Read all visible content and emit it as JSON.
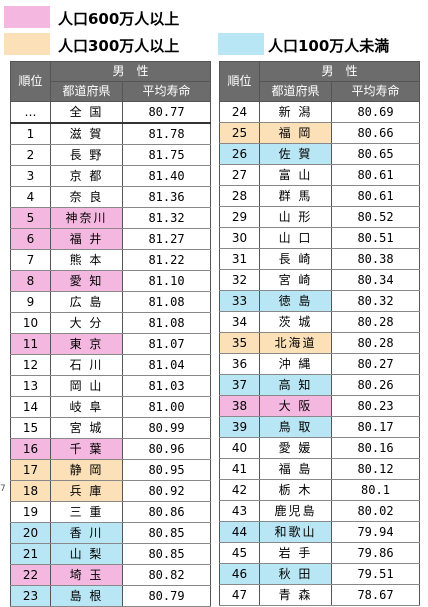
{
  "colors": {
    "pop600": "#f4b8e0",
    "pop300": "#fce0b8",
    "pop100": "#b8e6f4",
    "header_bg": "#6c6c6c"
  },
  "legend": [
    {
      "label": "人口600万人以上",
      "color": "#f4b8e0"
    },
    {
      "label": "人口300万人以上",
      "color": "#fce0b8"
    },
    {
      "label": "人口100万人未満",
      "color": "#b8e6f4"
    }
  ],
  "table": {
    "col_rank": "順位",
    "group_header": "男　性",
    "col_pref": "都道府県",
    "col_life": "平均寿命"
  },
  "left_rows": [
    {
      "rank": "…",
      "pref": "全 国",
      "value": "80.77",
      "cat": ""
    },
    {
      "rank": "1",
      "pref": "滋 賀",
      "value": "81.78",
      "cat": ""
    },
    {
      "rank": "2",
      "pref": "長 野",
      "value": "81.75",
      "cat": ""
    },
    {
      "rank": "3",
      "pref": "京 都",
      "value": "81.40",
      "cat": ""
    },
    {
      "rank": "4",
      "pref": "奈 良",
      "value": "81.36",
      "cat": ""
    },
    {
      "rank": "5",
      "pref": "神奈川",
      "value": "81.32",
      "cat": "pop600"
    },
    {
      "rank": "6",
      "pref": "福 井",
      "value": "81.27",
      "cat": "pop600"
    },
    {
      "rank": "7",
      "pref": "熊 本",
      "value": "81.22",
      "cat": ""
    },
    {
      "rank": "8",
      "pref": "愛 知",
      "value": "81.10",
      "cat": "pop600"
    },
    {
      "rank": "9",
      "pref": "広 島",
      "value": "81.08",
      "cat": ""
    },
    {
      "rank": "10",
      "pref": "大 分",
      "value": "81.08",
      "cat": ""
    },
    {
      "rank": "11",
      "pref": "東 京",
      "value": "81.07",
      "cat": "pop600"
    },
    {
      "rank": "12",
      "pref": "石 川",
      "value": "81.04",
      "cat": ""
    },
    {
      "rank": "13",
      "pref": "岡 山",
      "value": "81.03",
      "cat": ""
    },
    {
      "rank": "14",
      "pref": "岐 阜",
      "value": "81.00",
      "cat": ""
    },
    {
      "rank": "15",
      "pref": "宮 城",
      "value": "80.99",
      "cat": ""
    },
    {
      "rank": "16",
      "pref": "千 葉",
      "value": "80.96",
      "cat": "pop600"
    },
    {
      "rank": "17",
      "pref": "静 岡",
      "value": "80.95",
      "cat": "pop300"
    },
    {
      "rank": "18",
      "pref": "兵 庫",
      "value": "80.92",
      "cat": "pop300"
    },
    {
      "rank": "19",
      "pref": "三 重",
      "value": "80.86",
      "cat": ""
    },
    {
      "rank": "20",
      "pref": "香 川",
      "value": "80.85",
      "cat": "pop100"
    },
    {
      "rank": "21",
      "pref": "山 梨",
      "value": "80.85",
      "cat": "pop100"
    },
    {
      "rank": "22",
      "pref": "埼 玉",
      "value": "80.82",
      "cat": "pop600"
    },
    {
      "rank": "23",
      "pref": "島 根",
      "value": "80.79",
      "cat": "pop100"
    }
  ],
  "right_rows": [
    {
      "rank": "24",
      "pref": "新 潟",
      "value": "80.69",
      "cat": ""
    },
    {
      "rank": "25",
      "pref": "福 岡",
      "value": "80.66",
      "cat": "pop300"
    },
    {
      "rank": "26",
      "pref": "佐 賀",
      "value": "80.65",
      "cat": "pop100"
    },
    {
      "rank": "27",
      "pref": "富 山",
      "value": "80.61",
      "cat": ""
    },
    {
      "rank": "28",
      "pref": "群 馬",
      "value": "80.61",
      "cat": ""
    },
    {
      "rank": "29",
      "pref": "山 形",
      "value": "80.52",
      "cat": ""
    },
    {
      "rank": "30",
      "pref": "山 口",
      "value": "80.51",
      "cat": ""
    },
    {
      "rank": "31",
      "pref": "長 崎",
      "value": "80.38",
      "cat": ""
    },
    {
      "rank": "32",
      "pref": "宮 崎",
      "value": "80.34",
      "cat": ""
    },
    {
      "rank": "33",
      "pref": "徳 島",
      "value": "80.32",
      "cat": "pop100"
    },
    {
      "rank": "34",
      "pref": "茨 城",
      "value": "80.28",
      "cat": ""
    },
    {
      "rank": "35",
      "pref": "北海道",
      "value": "80.28",
      "cat": "pop300"
    },
    {
      "rank": "36",
      "pref": "沖 縄",
      "value": "80.27",
      "cat": ""
    },
    {
      "rank": "37",
      "pref": "高 知",
      "value": "80.26",
      "cat": "pop100"
    },
    {
      "rank": "38",
      "pref": "大 阪",
      "value": "80.23",
      "cat": "pop600"
    },
    {
      "rank": "39",
      "pref": "鳥 取",
      "value": "80.17",
      "cat": "pop100"
    },
    {
      "rank": "40",
      "pref": "愛 媛",
      "value": "80.16",
      "cat": ""
    },
    {
      "rank": "41",
      "pref": "福 島",
      "value": "80.12",
      "cat": ""
    },
    {
      "rank": "42",
      "pref": "栃 木",
      "value": "80.1",
      "cat": ""
    },
    {
      "rank": "43",
      "pref": "鹿児島",
      "value": "80.02",
      "cat": ""
    },
    {
      "rank": "44",
      "pref": "和歌山",
      "value": "79.94",
      "cat": "pop100"
    },
    {
      "rank": "45",
      "pref": "岩 手",
      "value": "79.86",
      "cat": ""
    },
    {
      "rank": "46",
      "pref": "秋 田",
      "value": "79.51",
      "cat": "pop100"
    },
    {
      "rank": "47",
      "pref": "青 森",
      "value": "78.67",
      "cat": ""
    }
  ],
  "stray_mark": "7"
}
